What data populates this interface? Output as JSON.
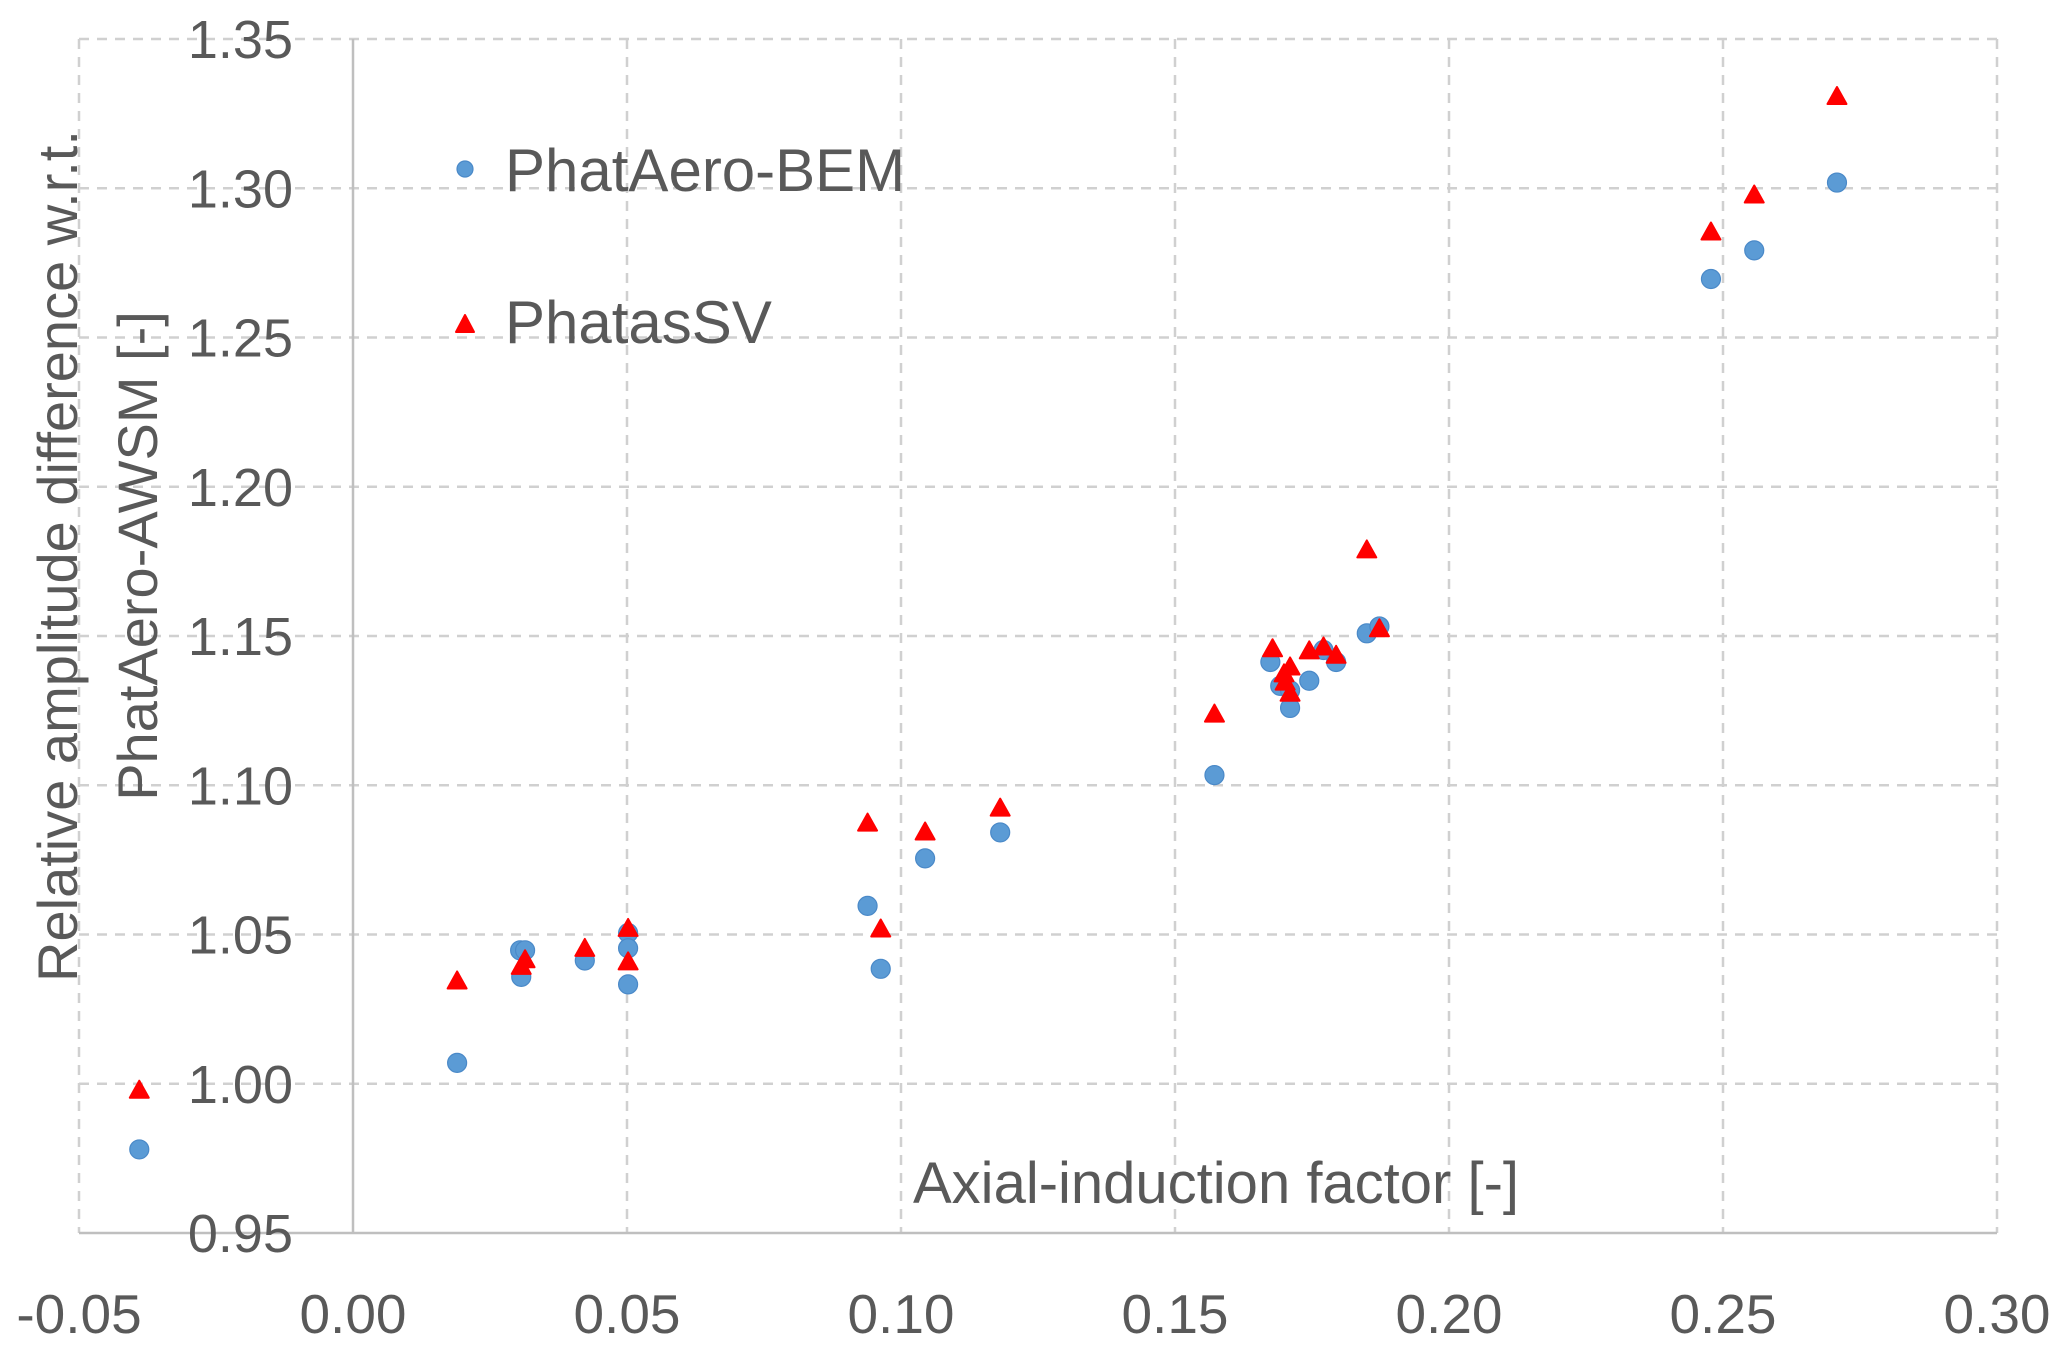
{
  "chart_data": {
    "type": "scatter",
    "title": "",
    "xlabel": "Axial-induction factor [-]",
    "ylabel_lines": [
      "Relative amplitude difference w.r.t.",
      "PhatAero-AWSM [-]"
    ],
    "xlim": [
      -0.05,
      0.3
    ],
    "ylim": [
      0.95,
      1.35
    ],
    "x_ticks": [
      "-0.05",
      "0.00",
      "0.05",
      "0.10",
      "0.15",
      "0.20",
      "0.25",
      "0.30"
    ],
    "x_tick_values": [
      -0.05,
      0.0,
      0.05,
      0.1,
      0.15,
      0.2,
      0.25,
      0.3
    ],
    "y_ticks": [
      "0.95",
      "1.00",
      "1.05",
      "1.10",
      "1.15",
      "1.20",
      "1.25",
      "1.30",
      "1.35"
    ],
    "y_tick_values": [
      0.95,
      1.0,
      1.05,
      1.1,
      1.15,
      1.2,
      1.25,
      1.3,
      1.35
    ],
    "grid": true,
    "legend_position": "top-left",
    "series": [
      {
        "name": "PhatAero-BEM",
        "marker": "circle",
        "color": "#5b9bd5",
        "points": [
          [
            -0.039,
            0.978
          ],
          [
            0.019,
            1.007
          ],
          [
            0.0305,
            1.0447
          ],
          [
            0.0314,
            1.0447
          ],
          [
            0.0307,
            1.0358
          ],
          [
            0.0423,
            1.0413
          ],
          [
            0.0502,
            1.0505
          ],
          [
            0.0502,
            1.0454
          ],
          [
            0.0502,
            1.0333
          ],
          [
            0.0939,
            1.0596
          ],
          [
            0.0963,
            1.0385
          ],
          [
            0.1044,
            1.0755
          ],
          [
            0.1181,
            1.0842
          ],
          [
            0.1572,
            1.1034
          ],
          [
            0.1674,
            1.1413
          ],
          [
            0.1692,
            1.1333
          ],
          [
            0.171,
            1.1318
          ],
          [
            0.171,
            1.1259
          ],
          [
            0.1745,
            1.135
          ],
          [
            0.1771,
            1.1453
          ],
          [
            0.1794,
            1.1413
          ],
          [
            0.185,
            1.1509
          ],
          [
            0.1873,
            1.1532
          ],
          [
            0.2478,
            1.2696
          ],
          [
            0.2557,
            1.2792
          ],
          [
            0.2708,
            1.3019
          ]
        ]
      },
      {
        "name": "PhatasSV",
        "marker": "triangle",
        "color": "#ff0000",
        "points": [
          [
            -0.039,
            0.998
          ],
          [
            0.019,
            1.0346
          ],
          [
            0.0314,
            1.0417
          ],
          [
            0.0307,
            1.0395
          ],
          [
            0.0423,
            1.0455
          ],
          [
            0.0502,
            1.0522
          ],
          [
            0.0502,
            1.041
          ],
          [
            0.0939,
            1.0875
          ],
          [
            0.0963,
            1.052
          ],
          [
            0.1044,
            1.0845
          ],
          [
            0.1181,
            1.0925
          ],
          [
            0.1572,
            1.124
          ],
          [
            0.1678,
            1.1459
          ],
          [
            0.171,
            1.1398
          ],
          [
            0.1699,
            1.1375
          ],
          [
            0.1701,
            1.1347
          ],
          [
            0.171,
            1.131
          ],
          [
            0.1745,
            1.1452
          ],
          [
            0.1771,
            1.1465
          ],
          [
            0.1794,
            1.1437
          ],
          [
            0.185,
            1.179
          ],
          [
            0.1873,
            1.1526
          ],
          [
            0.2478,
            1.2855
          ],
          [
            0.2557,
            1.2979
          ],
          [
            0.2708,
            1.3309
          ]
        ]
      }
    ]
  }
}
